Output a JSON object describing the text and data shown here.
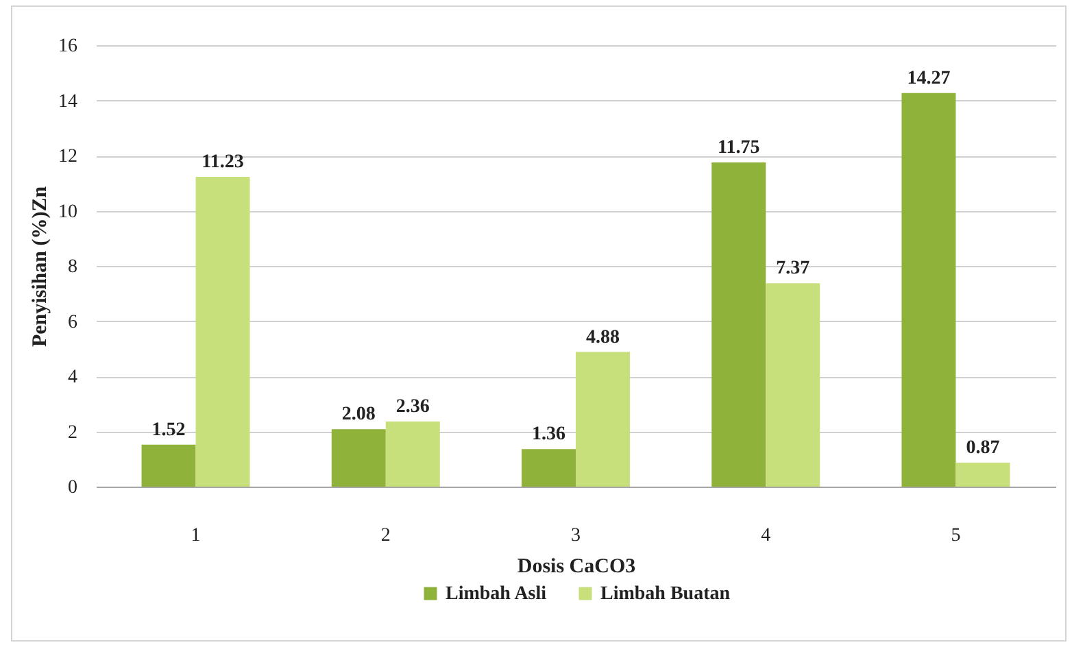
{
  "chart_data": {
    "type": "bar",
    "xlabel": "Dosis CaCO3",
    "ylabel": "Penyisihan (%)Zn",
    "categories": [
      "1",
      "2",
      "3",
      "4",
      "5"
    ],
    "series": [
      {
        "name": "Limbah Asli",
        "color": "#8fb23a",
        "values": [
          1.52,
          2.08,
          1.36,
          11.75,
          14.27
        ]
      },
      {
        "name": "Limbah Buatan",
        "color": "#c8e07c",
        "values": [
          11.23,
          2.36,
          4.88,
          7.37,
          0.87
        ]
      }
    ],
    "ylim": [
      0,
      16
    ],
    "yticks": [
      0,
      2,
      4,
      6,
      8,
      10,
      12,
      14,
      16
    ],
    "grid": "y",
    "legend": "bottom",
    "data_labels": true
  }
}
